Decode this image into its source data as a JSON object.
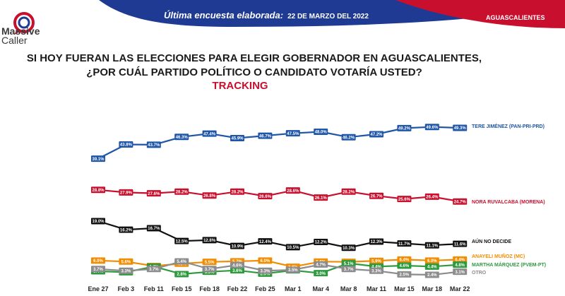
{
  "header": {
    "brand_line1": "Massive",
    "brand_line2": "Caller",
    "survey_label": "Última encuesta elaborada:",
    "survey_date": "22 DE MARZO DEL 2022",
    "region": "AGUASCALIENTES"
  },
  "colors": {
    "header_blue": "#1f3a93",
    "header_red": "#c8102e",
    "series": [
      "#1f56a8",
      "#c8102e",
      "#111111",
      "#f28c00",
      "#2e9a3e",
      "#8c8c8c"
    ]
  },
  "chart_data": {
    "type": "line",
    "title_line1": "SI HOY FUERAN LAS ELECCIONES PARA ELEGIR GOBERNADOR EN AGUASCALIENTES,",
    "title_line2": "¿POR CUÁL PARTIDO POLÍTICO O CANDIDATO VOTARÍA USTED?",
    "subtitle": "TRACKING",
    "categories": [
      "Ene 27",
      "Feb 3",
      "Feb 11",
      "Feb 15",
      "Feb 18",
      "Feb 22",
      "Feb 25",
      "Mar 1",
      "Mar 4",
      "Mar 8",
      "Mar 11",
      "Mar 15",
      "Mar 18",
      "Mar 22"
    ],
    "series": [
      {
        "name": "TERE JIMÉNEZ (PAN-PRI-PRD)",
        "values": [
          39.1,
          43.8,
          43.7,
          46.3,
          47.4,
          45.9,
          46.7,
          47.5,
          48.0,
          46.2,
          47.2,
          49.2,
          49.6,
          49.3
        ]
      },
      {
        "name": "NORA RUVALCABA (MORENA)",
        "values": [
          28.8,
          27.9,
          27.6,
          28.2,
          26.8,
          28.2,
          26.6,
          28.6,
          26.1,
          28.2,
          26.7,
          25.6,
          26.4,
          24.7
        ]
      },
      {
        "name": "AÚN NO DECIDE",
        "values": [
          19.0,
          16.2,
          16.7,
          12.5,
          12.8,
          10.9,
          12.4,
          10.5,
          12.2,
          10.3,
          12.3,
          11.7,
          11.1,
          11.6
        ]
      },
      {
        "name": "ANAYELI MUÑOZ (MC)",
        "values": [
          6.0,
          5.6,
          3.9,
          4.8,
          5.5,
          5.7,
          6.0,
          3.6,
          5.6,
          5.5,
          5.9,
          6.4,
          6.0,
          6.4
        ]
      },
      {
        "name": "MARTHA MÁRQUEZ (PVEM-PT)",
        "values": [
          3.4,
          3.2,
          4.4,
          2.8,
          3.3,
          3.6,
          2.9,
          3.6,
          3.0,
          5.1,
          4.4,
          4.6,
          4.4,
          4.8
        ]
      },
      {
        "name": "OTRO",
        "values": [
          3.7,
          3.3,
          3.7,
          5.4,
          3.7,
          4.6,
          3.3,
          3.5,
          4.7,
          3.7,
          3.3,
          2.5,
          2.4,
          3.1
        ]
      }
    ],
    "value_labels": [
      [
        "39.1%",
        "43.8%",
        "43.7%",
        "46.3%",
        "47.4%",
        "45.9%",
        "46.7%",
        "47.5%",
        "48.0%",
        "46.2%",
        "47.2%",
        "49.2%",
        "49.6%",
        "49.3%"
      ],
      [
        "28.8%",
        "27.9%",
        "27.6%",
        "28.2%",
        "26.8%",
        "28.2%",
        "26.6%",
        "28.6%",
        "26.1%",
        "28.2%",
        "26.7%",
        "25.6%",
        "26.4%",
        "24.7%"
      ],
      [
        "19.0%",
        "16.2%",
        "16.7%",
        "12.5%",
        "12.8%",
        "10.9%",
        "12.4%",
        "10.5%",
        "12.2%",
        "10.3%",
        "12.3%",
        "11.7%",
        "11.1%",
        "11.6%"
      ],
      [
        "6.0%",
        "5.6%",
        "3.9%",
        "4.8%",
        "5.5%",
        "5.7%",
        "6.0%",
        "3.6%",
        "5.6%",
        "5.5%",
        "5.9%",
        "6.4%",
        "6.0%",
        "6.4%"
      ],
      [
        "3.4%",
        "3.2%",
        "4.4%",
        "2.8%",
        "3.3%",
        "3.6%",
        "2.9%",
        "3.6%",
        "3.0%",
        "5.1%",
        "4.4%",
        "4.6%",
        "4.4%",
        "4.8%"
      ],
      [
        "3.7%",
        "3.3%",
        "3.7%",
        "5.4%",
        "3.7%",
        "4.6%",
        "3.3%",
        "3.5%",
        "4.7%",
        "3.7%",
        "3.3%",
        "2.5%",
        "2.4%",
        "3.1%"
      ]
    ],
    "legend_placement": "right",
    "grid": false
  }
}
